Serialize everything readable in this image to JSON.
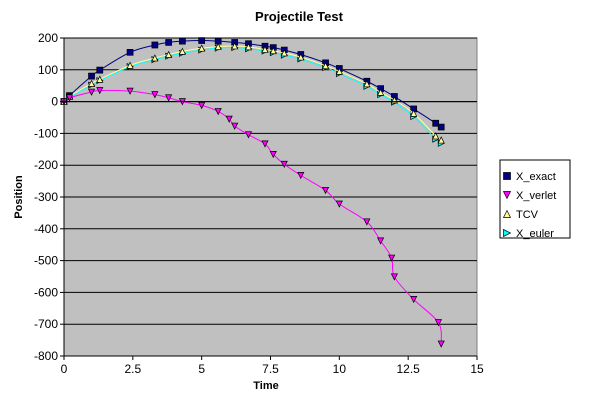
{
  "chart_data": {
    "type": "scatter",
    "title": "Projectile Test",
    "xlabel": "Time",
    "ylabel": "Position",
    "xlim": [
      0,
      15
    ],
    "ylim": [
      -800,
      200
    ],
    "x_ticks": [
      "0",
      "2.5",
      "5",
      "7.5",
      "10",
      "12.5",
      "15"
    ],
    "y_ticks": [
      "200",
      "100",
      "0",
      "-100",
      "-200",
      "-300",
      "-400",
      "-500",
      "-600",
      "-700",
      "-800"
    ],
    "grid": "horizontal",
    "legend_position": "right",
    "plot_background": "#c0c0c0",
    "series": [
      {
        "name": "X_exact",
        "color": "#000080",
        "marker": "square",
        "x": [
          0,
          0.2,
          1,
          1.3,
          2.4,
          3.3,
          3.8,
          4.3,
          5,
          5.6,
          6.2,
          6.7,
          7.3,
          7.6,
          8,
          8.6,
          9.5,
          10,
          11,
          11.5,
          12,
          12.7,
          13.5,
          13.7
        ],
        "y": [
          0,
          19,
          80,
          99,
          155,
          178,
          186,
          190,
          192,
          190,
          186,
          182,
          174,
          170,
          162,
          148,
          122,
          104,
          64,
          41,
          16,
          -23,
          -68,
          -80
        ]
      },
      {
        "name": "X_verlet",
        "color": "#ff00ff",
        "marker": "triangle-down",
        "x": [
          0,
          0.2,
          1,
          1.3,
          2.4,
          3.3,
          3.8,
          4.3,
          5,
          5.6,
          6,
          6.2,
          6.7,
          7.3,
          7.6,
          8,
          8.6,
          9.5,
          10,
          11,
          11.5,
          11.9,
          12,
          12.7,
          13.6,
          13.7
        ],
        "y": [
          0,
          12,
          30,
          35,
          33,
          22,
          12,
          0,
          -12,
          -31,
          -55,
          -77,
          -104,
          -133,
          -166,
          -197,
          -232,
          -279,
          -322,
          -378,
          -438,
          -492,
          -551,
          -622,
          -695,
          -762
        ]
      },
      {
        "name": "TCV",
        "color": "#ffff99",
        "marker": "triangle-up",
        "x": [
          0,
          0.2,
          1,
          1.3,
          2.4,
          3.3,
          3.8,
          4.3,
          5,
          5.6,
          6.2,
          6.7,
          7.3,
          7.6,
          8,
          8.6,
          9.5,
          10,
          11,
          11.5,
          12,
          12.7,
          13.5,
          13.7
        ],
        "y": [
          0,
          16,
          57,
          70,
          114,
          137,
          148,
          158,
          168,
          173,
          175,
          172,
          164,
          160,
          153,
          140,
          113,
          95,
          56,
          29,
          5,
          -37,
          -108,
          -121
        ]
      },
      {
        "name": "X_euler",
        "color": "#00ffff",
        "marker": "triangle-right",
        "x": [
          0,
          0.2,
          1,
          1.3,
          2.4,
          3.3,
          3.8,
          4.3,
          5,
          5.6,
          6.2,
          6.7,
          7.3,
          7.6,
          8,
          8.6,
          9.5,
          10,
          11,
          11.5,
          12,
          12.7,
          13.5,
          13.7
        ],
        "y": [
          0,
          14,
          52,
          66,
          110,
          132,
          143,
          152,
          162,
          168,
          170,
          166,
          159,
          154,
          146,
          134,
          107,
          88,
          48,
          22,
          -2,
          -47,
          -118,
          -131
        ]
      }
    ]
  }
}
